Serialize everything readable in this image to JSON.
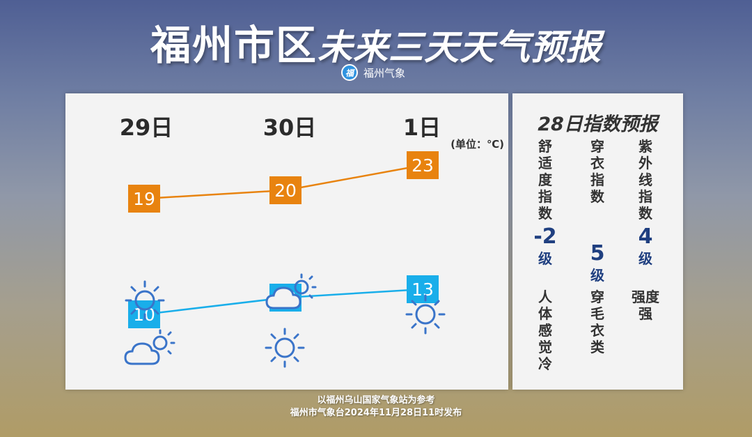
{
  "header": {
    "title_main": "福州市区",
    "title_sub": "未来三天天气预报",
    "brand_logo": "福",
    "brand": "福州气象"
  },
  "forecast": {
    "unit": "(单位：℃)",
    "days": [
      {
        "label": "29日",
        "high": "19",
        "low": "10",
        "icon_day": "sun-icon",
        "icon_night": "partly-cloudy-icon"
      },
      {
        "label": "30日",
        "high": "20",
        "low": "12",
        "icon_day": "partly-cloudy-icon",
        "icon_night": "sun-icon"
      },
      {
        "label": "1日",
        "high": "23",
        "low": "13",
        "icon_day": "sun-icon",
        "icon_night": ""
      }
    ],
    "colors": {
      "high": "#e8830f",
      "low": "#19aeea",
      "icon": "#3a74c9"
    }
  },
  "chart_data": {
    "type": "line",
    "categories": [
      "29日",
      "30日",
      "1日"
    ],
    "series": [
      {
        "name": "",
        "values": [
          19,
          20,
          23
        ]
      },
      {
        "name": "",
        "values": [
          10,
          12,
          13
        ]
      }
    ],
    "ylabel": "(单位：℃)"
  },
  "index": {
    "title": "28日指数预报",
    "items": [
      {
        "name": "舒适度指数",
        "value": "-2",
        "level": "级",
        "desc": "人体感觉冷"
      },
      {
        "name": "穿衣指数",
        "value": "5",
        "level": "级",
        "desc": "穿毛衣类"
      },
      {
        "name": "紫外线指数",
        "value": "4",
        "level": "级",
        "desc": "强度强"
      }
    ]
  },
  "footer": {
    "line1": "以福州乌山国家气象站为参考",
    "line2": "福州市气象台2024年11月28日11时发布"
  }
}
